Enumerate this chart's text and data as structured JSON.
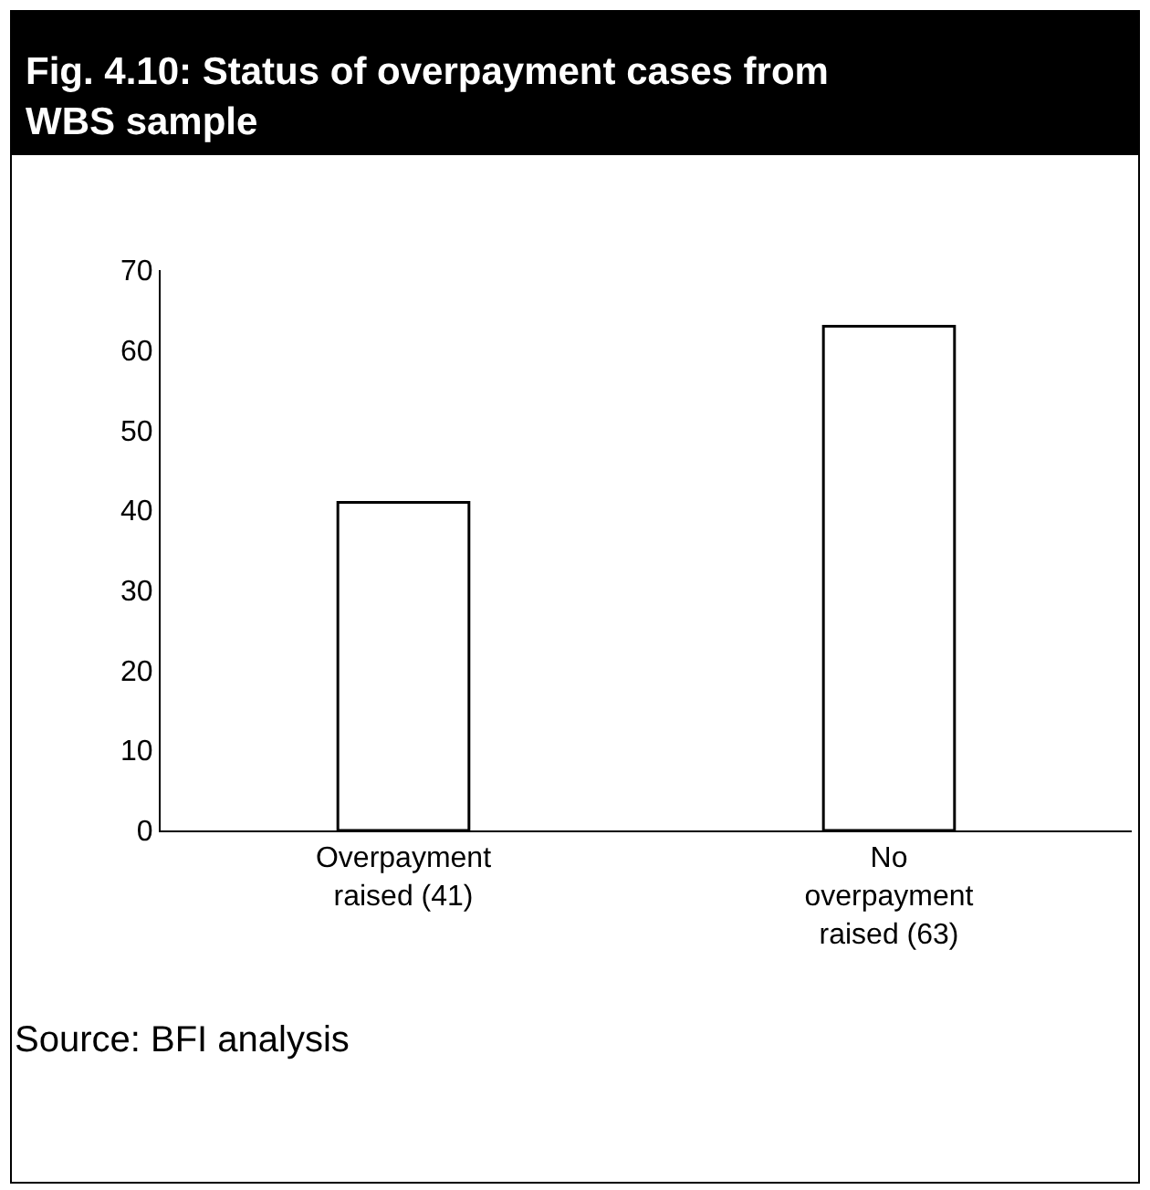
{
  "chart_data": {
    "type": "bar",
    "title": "Fig. 4.10: Status of overpayment cases from WBS sample",
    "categories": [
      "Overpayment raised (41)",
      "No overpayment raised (63)"
    ],
    "values": [
      41,
      63
    ],
    "color": "#ffffff",
    "ylim": [
      0,
      70
    ],
    "yticks": [
      0,
      10,
      20,
      30,
      40,
      50,
      60,
      70
    ],
    "grid": false,
    "annotations": [
      "Source: BFI analysis"
    ]
  }
}
